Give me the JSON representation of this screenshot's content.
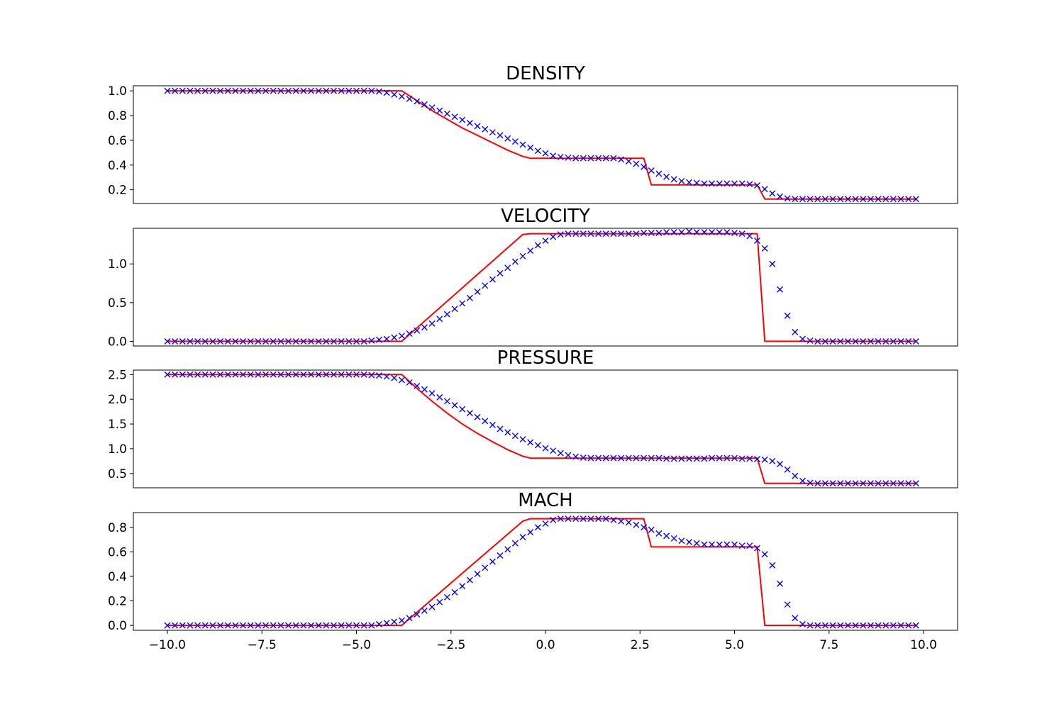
{
  "chart_data": [
    {
      "type": "line",
      "title": "DENSITY",
      "xlim": [
        -10.9,
        10.9
      ],
      "ylim": [
        0.089,
        1.041
      ],
      "yticks": [
        "1.0",
        "0.8",
        "0.6",
        "0.4",
        "0.2"
      ],
      "ytick_values": [
        1.0,
        0.8,
        0.6,
        0.4,
        0.2
      ],
      "show_xticks": false,
      "series": [
        {
          "style": "line",
          "color": "#ff0000",
          "x": [
            -10,
            -3.8,
            -3.4,
            -3.0,
            -2.6,
            -2.2,
            -1.8,
            -1.4,
            -1.0,
            -0.6,
            -0.4,
            2.6,
            2.8,
            5.6,
            5.8,
            9.8
          ],
          "y": [
            1.0,
            1.0,
            0.92,
            0.84,
            0.77,
            0.7,
            0.64,
            0.58,
            0.52,
            0.47,
            0.455,
            0.455,
            0.24,
            0.24,
            0.125,
            0.125
          ]
        },
        {
          "style": "markers",
          "color": "#0000ff",
          "x": [
            -10.0,
            -9.8,
            -9.6,
            -9.4,
            -9.2,
            -9.0,
            -8.8,
            -8.6,
            -8.4,
            -8.2,
            -8.0,
            -7.8,
            -7.6,
            -7.4,
            -7.2,
            -7.0,
            -6.8,
            -6.6,
            -6.4,
            -6.2,
            -6.0,
            -5.8,
            -5.6,
            -5.4,
            -5.2,
            -5.0,
            -4.8,
            -4.6,
            -4.4,
            -4.2,
            -4.0,
            -3.8,
            -3.6,
            -3.4,
            -3.2,
            -3.0,
            -2.8,
            -2.6,
            -2.4,
            -2.2,
            -2.0,
            -1.8,
            -1.6,
            -1.4,
            -1.2,
            -1.0,
            -0.8,
            -0.6,
            -0.4,
            -0.2,
            0.0,
            0.2,
            0.4,
            0.6,
            0.8,
            1.0,
            1.2,
            1.4,
            1.6,
            1.8,
            2.0,
            2.2,
            2.4,
            2.6,
            2.8,
            3.0,
            3.2,
            3.4,
            3.6,
            3.8,
            4.0,
            4.2,
            4.4,
            4.6,
            4.8,
            5.0,
            5.2,
            5.4,
            5.6,
            5.8,
            6.0,
            6.2,
            6.4,
            6.6,
            6.8,
            7.0,
            7.2,
            7.4,
            7.6,
            7.8,
            8.0,
            8.2,
            8.4,
            8.6,
            8.8,
            9.0,
            9.2,
            9.4,
            9.6,
            9.8
          ],
          "y": [
            1.0,
            1.0,
            1.0,
            1.0,
            1.0,
            1.0,
            1.0,
            1.0,
            1.0,
            1.0,
            1.0,
            1.0,
            1.0,
            1.0,
            1.0,
            1.0,
            1.0,
            1.0,
            1.0,
            1.0,
            1.0,
            1.0,
            1.0,
            1.0,
            1.0,
            1.0,
            1.0,
            1.0,
            0.995,
            0.985,
            0.97,
            0.955,
            0.935,
            0.915,
            0.89,
            0.865,
            0.84,
            0.815,
            0.79,
            0.765,
            0.74,
            0.715,
            0.69,
            0.665,
            0.64,
            0.615,
            0.59,
            0.565,
            0.54,
            0.515,
            0.495,
            0.475,
            0.465,
            0.46,
            0.455,
            0.455,
            0.455,
            0.455,
            0.455,
            0.455,
            0.445,
            0.43,
            0.41,
            0.385,
            0.355,
            0.33,
            0.305,
            0.285,
            0.27,
            0.26,
            0.255,
            0.25,
            0.25,
            0.25,
            0.25,
            0.25,
            0.25,
            0.245,
            0.235,
            0.205,
            0.17,
            0.145,
            0.13,
            0.125,
            0.125,
            0.125,
            0.125,
            0.125,
            0.125,
            0.125,
            0.125,
            0.125,
            0.125,
            0.125,
            0.125,
            0.125,
            0.125,
            0.125,
            0.125,
            0.125
          ]
        }
      ]
    },
    {
      "type": "line",
      "title": "VELOCITY",
      "xlim": [
        -10.9,
        10.9
      ],
      "ylim": [
        -0.06,
        1.46
      ],
      "yticks": [
        "1.0",
        "0.5",
        "0.0"
      ],
      "ytick_values": [
        1.0,
        0.5,
        0.0
      ],
      "show_xticks": false,
      "series": [
        {
          "style": "line",
          "color": "#ff0000",
          "x": [
            -10,
            -3.8,
            -0.6,
            -0.4,
            5.6,
            5.8,
            9.8
          ],
          "y": [
            0.0,
            0.0,
            1.38,
            1.39,
            1.39,
            0.0,
            0.0
          ]
        },
        {
          "style": "markers",
          "color": "#0000ff",
          "x": [
            -10.0,
            -9.8,
            -9.6,
            -9.4,
            -9.2,
            -9.0,
            -8.8,
            -8.6,
            -8.4,
            -8.2,
            -8.0,
            -7.8,
            -7.6,
            -7.4,
            -7.2,
            -7.0,
            -6.8,
            -6.6,
            -6.4,
            -6.2,
            -6.0,
            -5.8,
            -5.6,
            -5.4,
            -5.2,
            -5.0,
            -4.8,
            -4.6,
            -4.4,
            -4.2,
            -4.0,
            -3.8,
            -3.6,
            -3.4,
            -3.2,
            -3.0,
            -2.8,
            -2.6,
            -2.4,
            -2.2,
            -2.0,
            -1.8,
            -1.6,
            -1.4,
            -1.2,
            -1.0,
            -0.8,
            -0.6,
            -0.4,
            -0.2,
            0.0,
            0.2,
            0.4,
            0.6,
            0.8,
            1.0,
            1.2,
            1.4,
            1.6,
            1.8,
            2.0,
            2.2,
            2.4,
            2.6,
            2.8,
            3.0,
            3.2,
            3.4,
            3.6,
            3.8,
            4.0,
            4.2,
            4.4,
            4.6,
            4.8,
            5.0,
            5.2,
            5.4,
            5.6,
            5.8,
            6.0,
            6.2,
            6.4,
            6.6,
            6.8,
            7.0,
            7.2,
            7.4,
            7.6,
            7.8,
            8.0,
            8.2,
            8.4,
            8.6,
            8.8,
            9.0,
            9.2,
            9.4,
            9.6,
            9.8
          ],
          "y": [
            0.0,
            0.0,
            0.0,
            0.0,
            0.0,
            0.0,
            0.0,
            0.0,
            0.0,
            0.0,
            0.0,
            0.0,
            0.0,
            0.0,
            0.0,
            0.0,
            0.0,
            0.0,
            0.0,
            0.0,
            0.0,
            0.0,
            0.0,
            0.0,
            0.0,
            0.0,
            0.0,
            0.01,
            0.02,
            0.03,
            0.05,
            0.07,
            0.1,
            0.14,
            0.18,
            0.23,
            0.29,
            0.35,
            0.42,
            0.49,
            0.56,
            0.64,
            0.72,
            0.8,
            0.88,
            0.95,
            1.03,
            1.1,
            1.17,
            1.24,
            1.3,
            1.35,
            1.38,
            1.39,
            1.39,
            1.39,
            1.39,
            1.39,
            1.39,
            1.39,
            1.39,
            1.39,
            1.39,
            1.4,
            1.4,
            1.4,
            1.41,
            1.41,
            1.41,
            1.42,
            1.41,
            1.41,
            1.41,
            1.41,
            1.41,
            1.4,
            1.39,
            1.36,
            1.3,
            1.2,
            1.0,
            0.67,
            0.33,
            0.12,
            0.03,
            0.01,
            0.0,
            0.0,
            0.0,
            0.0,
            0.0,
            0.0,
            0.0,
            0.0,
            0.0,
            0.0,
            0.0,
            0.0,
            0.0,
            0.0
          ]
        }
      ]
    },
    {
      "type": "line",
      "title": "PRESSURE",
      "xlim": [
        -10.9,
        10.9
      ],
      "ylim": [
        0.21,
        2.59
      ],
      "yticks": [
        "2.5",
        "2.0",
        "1.5",
        "1.0",
        "0.5"
      ],
      "ytick_values": [
        2.5,
        2.0,
        1.5,
        1.0,
        0.5
      ],
      "show_xticks": false,
      "series": [
        {
          "style": "line",
          "color": "#ff0000",
          "x": [
            -10,
            -3.8,
            -3.4,
            -3.0,
            -2.6,
            -2.2,
            -1.8,
            -1.4,
            -1.0,
            -0.6,
            -0.4,
            5.6,
            5.8,
            9.8
          ],
          "y": [
            2.5,
            2.5,
            2.22,
            1.96,
            1.72,
            1.5,
            1.31,
            1.14,
            0.98,
            0.85,
            0.81,
            0.81,
            0.3,
            0.3
          ]
        },
        {
          "style": "markers",
          "color": "#0000ff",
          "x": [
            -10.0,
            -9.8,
            -9.6,
            -9.4,
            -9.2,
            -9.0,
            -8.8,
            -8.6,
            -8.4,
            -8.2,
            -8.0,
            -7.8,
            -7.6,
            -7.4,
            -7.2,
            -7.0,
            -6.8,
            -6.6,
            -6.4,
            -6.2,
            -6.0,
            -5.8,
            -5.6,
            -5.4,
            -5.2,
            -5.0,
            -4.8,
            -4.6,
            -4.4,
            -4.2,
            -4.0,
            -3.8,
            -3.6,
            -3.4,
            -3.2,
            -3.0,
            -2.8,
            -2.6,
            -2.4,
            -2.2,
            -2.0,
            -1.8,
            -1.6,
            -1.4,
            -1.2,
            -1.0,
            -0.8,
            -0.6,
            -0.4,
            -0.2,
            0.0,
            0.2,
            0.4,
            0.6,
            0.8,
            1.0,
            1.2,
            1.4,
            1.6,
            1.8,
            2.0,
            2.2,
            2.4,
            2.6,
            2.8,
            3.0,
            3.2,
            3.4,
            3.6,
            3.8,
            4.0,
            4.2,
            4.4,
            4.6,
            4.8,
            5.0,
            5.2,
            5.4,
            5.6,
            5.8,
            6.0,
            6.2,
            6.4,
            6.6,
            6.8,
            7.0,
            7.2,
            7.4,
            7.6,
            7.8,
            8.0,
            8.2,
            8.4,
            8.6,
            8.8,
            9.0,
            9.2,
            9.4,
            9.6,
            9.8
          ],
          "y": [
            2.5,
            2.5,
            2.5,
            2.5,
            2.5,
            2.5,
            2.5,
            2.5,
            2.5,
            2.5,
            2.5,
            2.5,
            2.5,
            2.5,
            2.5,
            2.5,
            2.5,
            2.5,
            2.5,
            2.5,
            2.5,
            2.5,
            2.5,
            2.5,
            2.5,
            2.5,
            2.5,
            2.49,
            2.48,
            2.46,
            2.43,
            2.39,
            2.34,
            2.27,
            2.2,
            2.12,
            2.04,
            1.96,
            1.88,
            1.8,
            1.72,
            1.64,
            1.56,
            1.48,
            1.4,
            1.33,
            1.26,
            1.19,
            1.13,
            1.07,
            1.01,
            0.96,
            0.91,
            0.87,
            0.84,
            0.82,
            0.81,
            0.81,
            0.81,
            0.81,
            0.81,
            0.81,
            0.81,
            0.81,
            0.81,
            0.81,
            0.8,
            0.8,
            0.8,
            0.8,
            0.8,
            0.8,
            0.81,
            0.81,
            0.81,
            0.81,
            0.8,
            0.8,
            0.79,
            0.78,
            0.75,
            0.69,
            0.58,
            0.45,
            0.35,
            0.31,
            0.3,
            0.3,
            0.3,
            0.3,
            0.3,
            0.3,
            0.3,
            0.3,
            0.3,
            0.3,
            0.3,
            0.3,
            0.3,
            0.3
          ]
        }
      ]
    },
    {
      "type": "line",
      "title": "MACH",
      "xlim": [
        -10.9,
        10.9
      ],
      "ylim": [
        -0.04,
        0.92
      ],
      "yticks": [
        "0.8",
        "0.6",
        "0.4",
        "0.2",
        "0.0"
      ],
      "ytick_values": [
        0.8,
        0.6,
        0.4,
        0.2,
        0.0
      ],
      "xticks": [
        "−10.0",
        "−7.5",
        "−5.0",
        "−2.5",
        "0.0",
        "2.5",
        "5.0",
        "7.5",
        "10.0"
      ],
      "xtick_values": [
        -10.0,
        -7.5,
        -5.0,
        -2.5,
        0.0,
        2.5,
        5.0,
        7.5,
        10.0
      ],
      "show_xticks": true,
      "series": [
        {
          "style": "line",
          "color": "#ff0000",
          "x": [
            -10,
            -3.8,
            -0.6,
            -0.4,
            2.6,
            2.8,
            5.6,
            5.8,
            9.8
          ],
          "y": [
            0.0,
            0.0,
            0.85,
            0.87,
            0.87,
            0.64,
            0.64,
            0.0,
            0.0
          ]
        },
        {
          "style": "markers",
          "color": "#0000ff",
          "x": [
            -10.0,
            -9.8,
            -9.6,
            -9.4,
            -9.2,
            -9.0,
            -8.8,
            -8.6,
            -8.4,
            -8.2,
            -8.0,
            -7.8,
            -7.6,
            -7.4,
            -7.2,
            -7.0,
            -6.8,
            -6.6,
            -6.4,
            -6.2,
            -6.0,
            -5.8,
            -5.6,
            -5.4,
            -5.2,
            -5.0,
            -4.8,
            -4.6,
            -4.4,
            -4.2,
            -4.0,
            -3.8,
            -3.6,
            -3.4,
            -3.2,
            -3.0,
            -2.8,
            -2.6,
            -2.4,
            -2.2,
            -2.0,
            -1.8,
            -1.6,
            -1.4,
            -1.2,
            -1.0,
            -0.8,
            -0.6,
            -0.4,
            -0.2,
            0.0,
            0.2,
            0.4,
            0.6,
            0.8,
            1.0,
            1.2,
            1.4,
            1.6,
            1.8,
            2.0,
            2.2,
            2.4,
            2.6,
            2.8,
            3.0,
            3.2,
            3.4,
            3.6,
            3.8,
            4.0,
            4.2,
            4.4,
            4.6,
            4.8,
            5.0,
            5.2,
            5.4,
            5.6,
            5.8,
            6.0,
            6.2,
            6.4,
            6.6,
            6.8,
            7.0,
            7.2,
            7.4,
            7.6,
            7.8,
            8.0,
            8.2,
            8.4,
            8.6,
            8.8,
            9.0,
            9.2,
            9.4,
            9.6,
            9.8
          ],
          "y": [
            0.0,
            0.0,
            0.0,
            0.0,
            0.0,
            0.0,
            0.0,
            0.0,
            0.0,
            0.0,
            0.0,
            0.0,
            0.0,
            0.0,
            0.0,
            0.0,
            0.0,
            0.0,
            0.0,
            0.0,
            0.0,
            0.0,
            0.0,
            0.0,
            0.0,
            0.0,
            0.0,
            0.0,
            0.01,
            0.02,
            0.03,
            0.04,
            0.06,
            0.09,
            0.12,
            0.15,
            0.19,
            0.23,
            0.27,
            0.32,
            0.37,
            0.42,
            0.47,
            0.52,
            0.57,
            0.62,
            0.67,
            0.72,
            0.76,
            0.8,
            0.83,
            0.86,
            0.87,
            0.87,
            0.87,
            0.87,
            0.87,
            0.87,
            0.87,
            0.86,
            0.85,
            0.84,
            0.82,
            0.8,
            0.78,
            0.75,
            0.73,
            0.71,
            0.69,
            0.68,
            0.67,
            0.66,
            0.66,
            0.66,
            0.66,
            0.66,
            0.65,
            0.65,
            0.63,
            0.58,
            0.49,
            0.34,
            0.17,
            0.06,
            0.01,
            0.0,
            0.0,
            0.0,
            0.0,
            0.0,
            0.0,
            0.0,
            0.0,
            0.0,
            0.0,
            0.0,
            0.0,
            0.0,
            0.0,
            0.0
          ]
        }
      ]
    }
  ]
}
